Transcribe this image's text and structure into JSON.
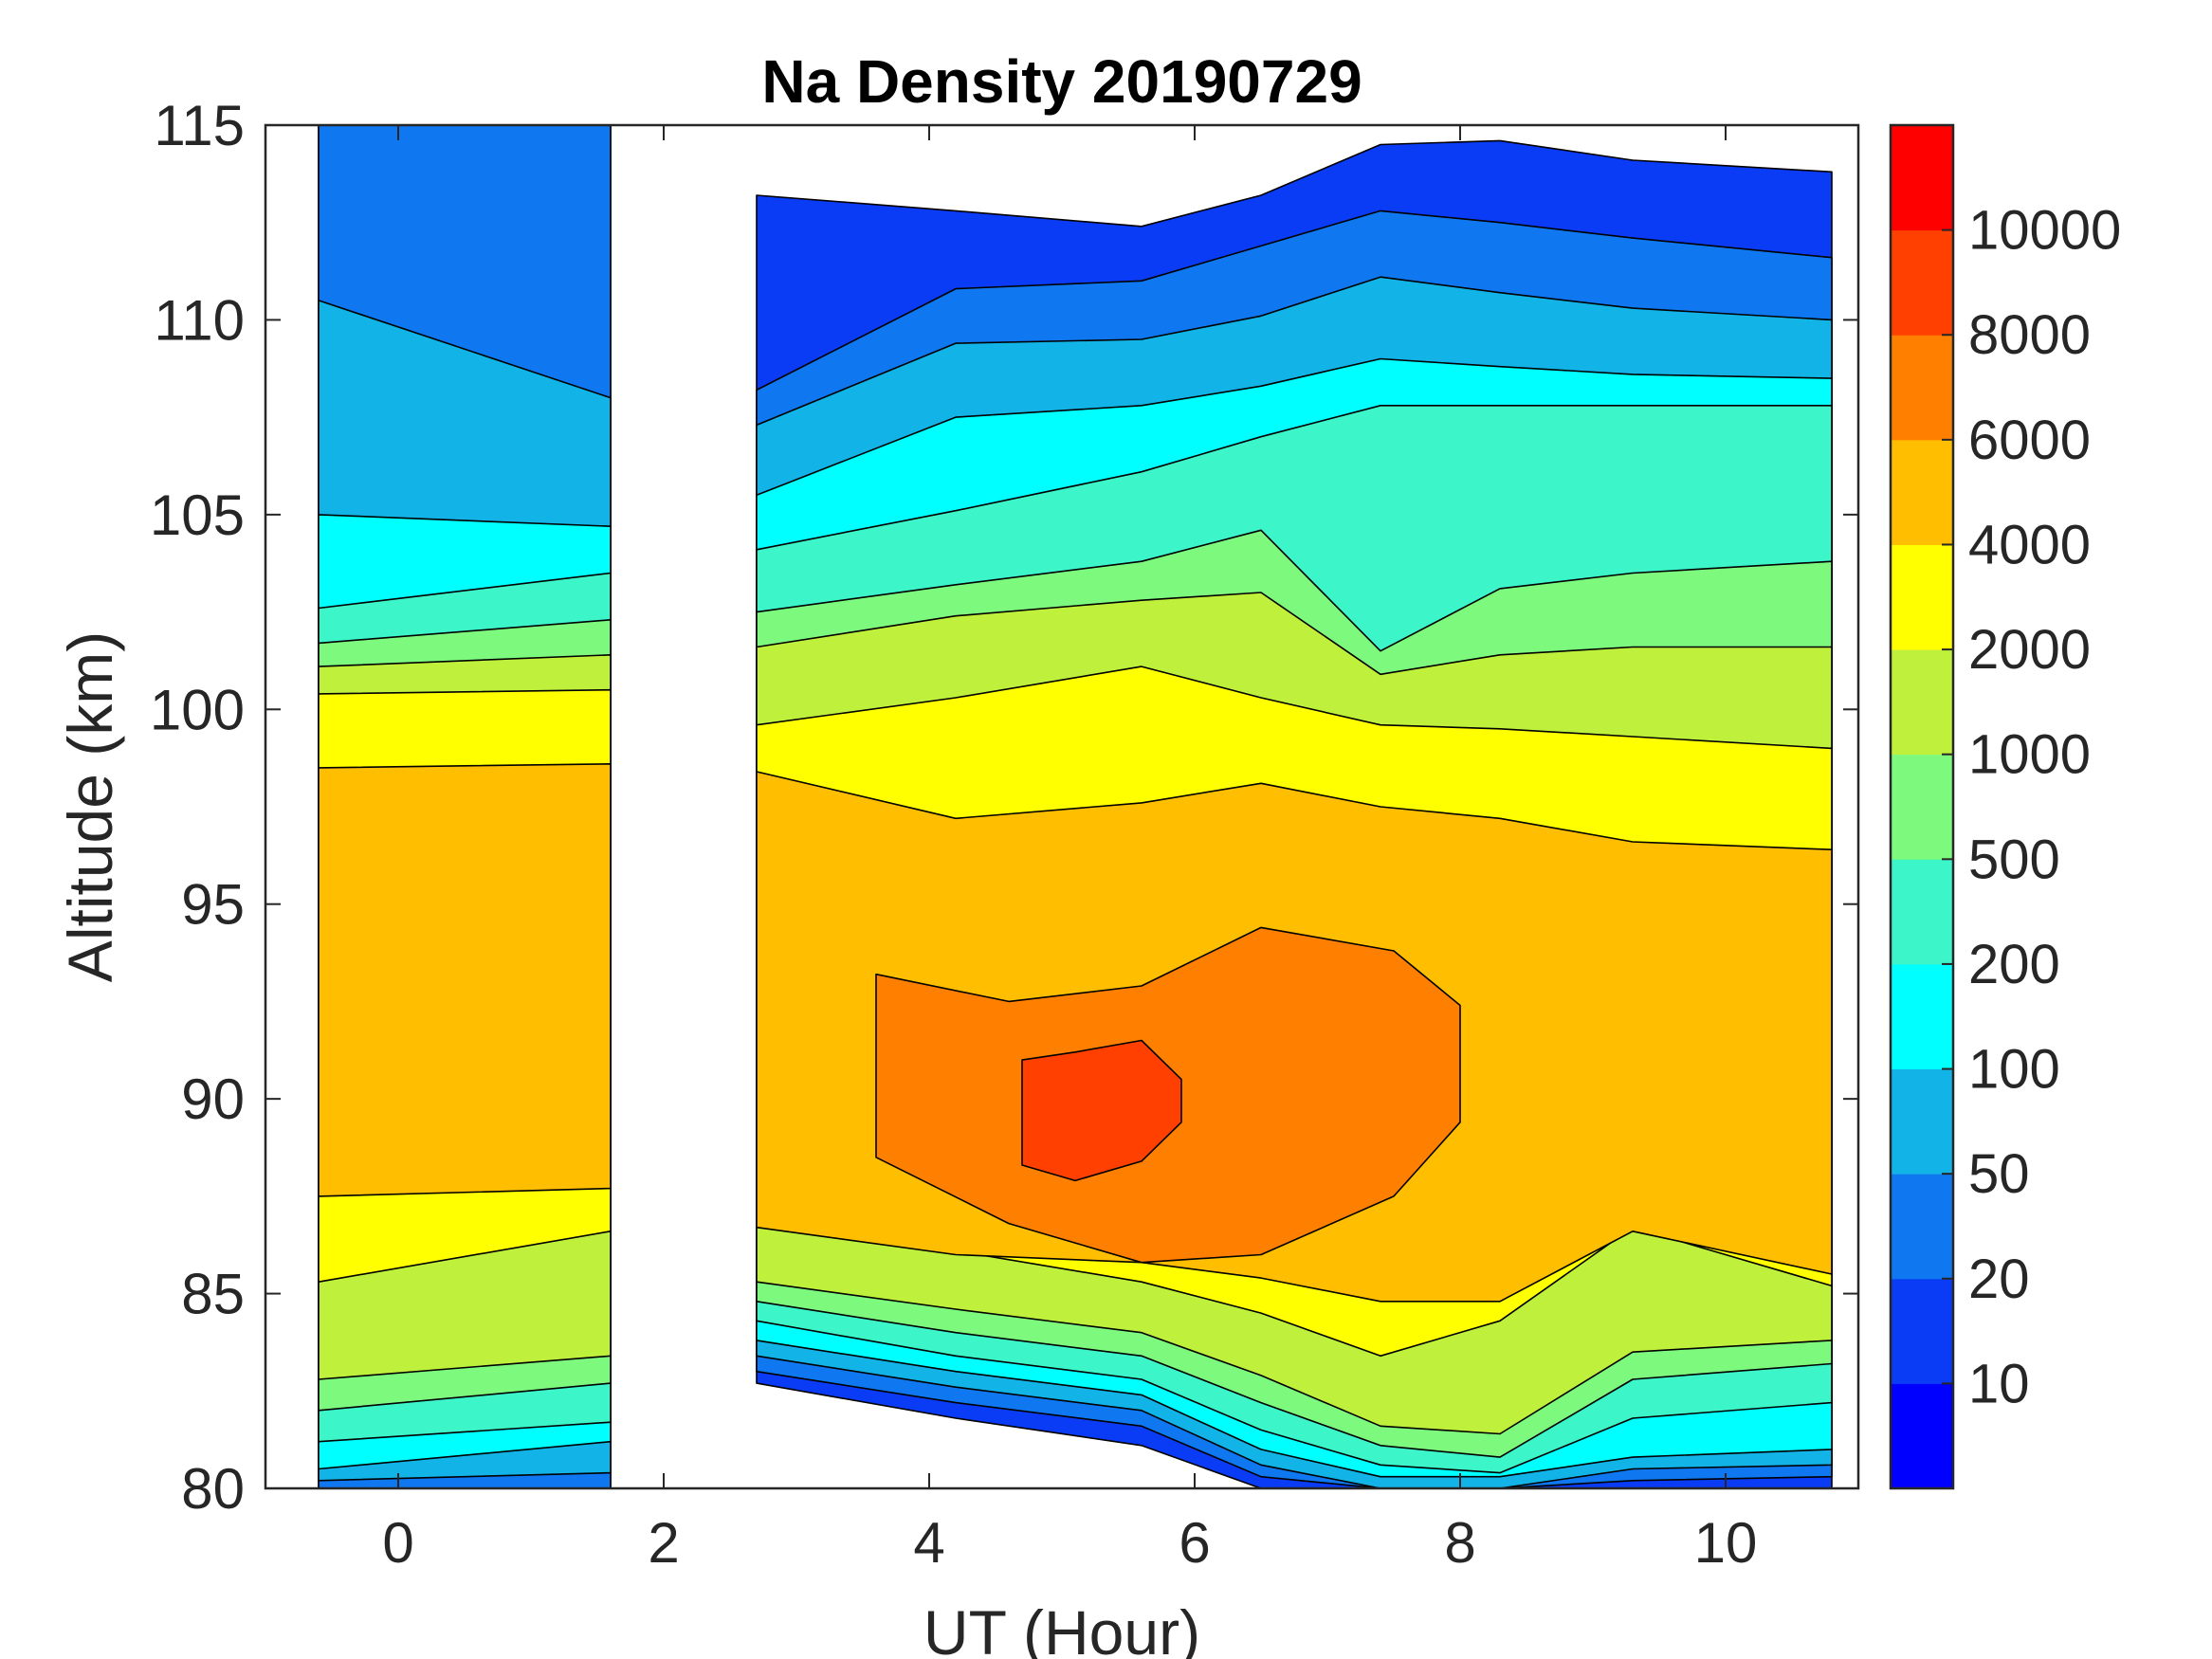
{
  "chart_data": {
    "type": "heatmap",
    "title": "Na Density 20190729",
    "xlabel": "UT (Hour)",
    "ylabel": "Altitude (km)",
    "xlim": [
      -1,
      11
    ],
    "ylim": [
      80,
      115
    ],
    "xticks": [
      0,
      2,
      4,
      6,
      8,
      10
    ],
    "yticks": [
      80,
      85,
      90,
      95,
      100,
      105,
      110,
      115
    ],
    "data_gap_ut": [
      1.6,
      2.7
    ],
    "colorbar": {
      "levels": [
        0,
        10,
        20,
        50,
        100,
        200,
        500,
        1000,
        2000,
        4000,
        6000,
        8000,
        10000,
        12000
      ],
      "tick_labels": [
        "10",
        "20",
        "50",
        "100",
        "200",
        "500",
        "1000",
        "2000",
        "4000",
        "6000",
        "8000",
        "10000"
      ],
      "colors": [
        "#0000ff",
        "#0a3cf6",
        "#0f78f0",
        "#12b4e8",
        "#00ffff",
        "#3cf5c8",
        "#7dfa7d",
        "#bef03c",
        "#ffff00",
        "#ffbe00",
        "#ff8000",
        "#ff4000",
        "#ff0000"
      ]
    },
    "layers": [
      {
        "level": 10,
        "top_alt": [
          115,
          115,
          113.2,
          112.8,
          112.4,
          113.2,
          114.5,
          114.6,
          114.1,
          113.8
        ],
        "bottom_alt": [
          80,
          80,
          82.7,
          81.8,
          81.1,
          80,
          80,
          80,
          80,
          80
        ]
      },
      {
        "level": 20,
        "top_alt": [
          115,
          115,
          108.2,
          110.8,
          111.0,
          111.9,
          112.8,
          112.5,
          112.1,
          111.6
        ],
        "bottom_alt": [
          80,
          80,
          83.0,
          82.2,
          81.6,
          80.3,
          80,
          80,
          80.2,
          80.3
        ]
      },
      {
        "level": 50,
        "top_alt": [
          110.5,
          108.0,
          107.3,
          109.4,
          109.5,
          110.1,
          111.1,
          110.7,
          110.3,
          110.0
        ],
        "bottom_alt": [
          80.2,
          80.4,
          83.4,
          82.6,
          82.0,
          80.6,
          80,
          80,
          80.5,
          80.6
        ]
      },
      {
        "level": 100,
        "top_alt": [
          105.0,
          104.7,
          105.5,
          107.5,
          107.8,
          108.3,
          109.0,
          108.8,
          108.6,
          108.5
        ],
        "bottom_alt": [
          80.5,
          81.2,
          83.8,
          83.0,
          82.4,
          81.0,
          80.3,
          80.3,
          80.8,
          81.0
        ]
      },
      {
        "level": 200,
        "top_alt": [
          102.6,
          103.5,
          104.1,
          105.1,
          106.1,
          107.0,
          107.8,
          107.8,
          107.8,
          107.8
        ],
        "bottom_alt": [
          81.2,
          81.7,
          84.3,
          83.4,
          82.8,
          81.5,
          80.6,
          80.4,
          81.8,
          82.2
        ]
      },
      {
        "level": 500,
        "top_alt": [
          101.7,
          102.3,
          102.5,
          103.2,
          103.8,
          104.6,
          101.5,
          103.1,
          103.5,
          103.8
        ],
        "bottom_alt": [
          82.0,
          82.7,
          84.8,
          84.0,
          83.4,
          82.2,
          81.1,
          80.8,
          82.8,
          83.2
        ]
      },
      {
        "level": 1000,
        "top_alt": [
          101.1,
          101.4,
          101.6,
          102.4,
          102.8,
          103.0,
          100.9,
          101.4,
          101.6,
          101.6
        ],
        "bottom_alt": [
          82.8,
          83.4,
          85.3,
          84.6,
          84.0,
          82.9,
          81.6,
          81.4,
          83.5,
          83.8
        ]
      },
      {
        "level": 2000,
        "top_alt": [
          100.4,
          100.5,
          99.6,
          100.3,
          101.1,
          100.3,
          99.6,
          99.5,
          99.3,
          99.0
        ],
        "bottom_alt": [
          85.3,
          86.6,
          87.0,
          86.1,
          85.3,
          84.5,
          83.4,
          84.3,
          86.7,
          85.2
        ]
      },
      {
        "level": 4000,
        "top_alt": [
          98.5,
          98.6,
          98.4,
          97.2,
          97.6,
          98.1,
          97.5,
          97.2,
          96.6,
          96.4
        ],
        "bottom_alt": [
          87.5,
          87.7,
          86.7,
          86.0,
          85.8,
          85.4,
          84.8,
          84.8,
          86.6,
          85.5
        ]
      },
      {
        "level": 6000,
        "top_alt": [
          93.2,
          92.5,
          92.9,
          94.4,
          93.8,
          92.4
        ],
        "bottom_alt": [
          88.5,
          86.8,
          85.8,
          86.0,
          87.5,
          89.4
        ]
      },
      {
        "level": 8000,
        "top_alt": [
          91.0,
          91.2,
          91.5,
          90.5
        ],
        "bottom_alt": [
          88.3,
          87.9,
          88.4,
          89.4
        ]
      }
    ]
  }
}
